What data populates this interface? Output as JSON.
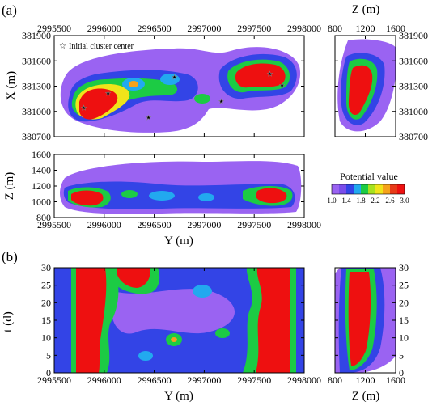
{
  "panel_labels": {
    "a": "(a)",
    "b": "(b)"
  },
  "colors": {
    "levels": [
      "#9a63f2",
      "#7a4dea",
      "#3344e6",
      "#22a9ef",
      "#1ccb44",
      "#a6e21f",
      "#f0e41a",
      "#f5a21a",
      "#e83b18",
      "#ee1010"
    ],
    "bg_white": "#ffffff"
  },
  "chart_data": [
    {
      "id": "a-xy",
      "type": "heatmap",
      "xlabel": "Y (m)",
      "ylabel": "X (m)",
      "xlim": [
        2995500,
        2998000
      ],
      "ylim": [
        380700,
        381900
      ],
      "x_ticks": [
        "2995500",
        "2996000",
        "2996500",
        "2997000",
        "2997500",
        "2998000"
      ],
      "y_ticks": [
        "381900",
        "381600",
        "381300",
        "381000",
        "380700"
      ],
      "annotation": "Initial cluster center",
      "high_regions": [
        {
          "y": 2995800,
          "x": 381150,
          "level": 3.0
        },
        {
          "y": 2996150,
          "x": 381250,
          "level": 2.6
        },
        {
          "y": 2996500,
          "x": 381320,
          "level": 2.2
        },
        {
          "y": 2997650,
          "x": 381450,
          "level": 3.0
        },
        {
          "y": 2997350,
          "x": 381450,
          "level": 2.6
        }
      ]
    },
    {
      "id": "a-xz",
      "type": "heatmap",
      "xlabel": "Z (m)",
      "ylabel": "X (m)",
      "xlim": [
        800,
        1600
      ],
      "ylim": [
        380700,
        381900
      ],
      "x_ticks": [
        "800",
        "1200",
        "1600"
      ],
      "y_ticks": [
        "381900",
        "381600",
        "381300",
        "381000",
        "380700"
      ],
      "high_regions": [
        {
          "z": 1100,
          "x": 381100,
          "level": 3.0
        },
        {
          "z": 1180,
          "x": 381450,
          "level": 3.0
        }
      ]
    },
    {
      "id": "a-yz",
      "type": "heatmap",
      "xlabel": "Y (m)",
      "ylabel": "Z (m)",
      "xlim": [
        2995500,
        2998000
      ],
      "ylim": [
        800,
        1600
      ],
      "x_ticks": [
        "2995500",
        "2996000",
        "2996500",
        "2997000",
        "2997500",
        "2998000"
      ],
      "y_ticks": [
        "1600",
        "1400",
        "1200",
        "1000",
        "800"
      ],
      "high_regions": [
        {
          "y": 2995800,
          "z": 1050,
          "level": 3.0
        },
        {
          "y": 2997650,
          "z": 1100,
          "level": 3.0
        }
      ]
    },
    {
      "id": "b-ty",
      "type": "heatmap",
      "xlabel": "Y (m)",
      "ylabel": "t (d)",
      "xlim": [
        2995500,
        2998000
      ],
      "ylim": [
        0,
        30
      ],
      "x_ticks": [
        "2995500",
        "2996000",
        "2996500",
        "2997000",
        "2997500",
        "2998000"
      ],
      "y_ticks": [
        "30",
        "25",
        "20",
        "15",
        "10",
        "5",
        "0"
      ],
      "high_regions": [
        {
          "y": 2995800,
          "t_range": [
            0,
            30
          ],
          "level": 3.0
        },
        {
          "y": 2996200,
          "t_range": [
            18,
            30
          ],
          "level": 3.0
        },
        {
          "y": 2997700,
          "t_range": [
            0,
            30
          ],
          "level": 3.0
        }
      ]
    },
    {
      "id": "b-tz",
      "type": "heatmap",
      "xlabel": "Z (m)",
      "ylabel": "",
      "xlim": [
        800,
        1600
      ],
      "ylim": [
        0,
        30
      ],
      "x_ticks": [
        "800",
        "1200",
        "1600"
      ],
      "y_ticks": [
        "30",
        "25",
        "20",
        "15",
        "10",
        "5",
        "0"
      ],
      "high_regions": [
        {
          "z": 1100,
          "t_range": [
            0,
            30
          ],
          "level": 3.0
        }
      ]
    }
  ],
  "legend": {
    "title": "Potential value",
    "tick_labels": [
      "1.0",
      "1.4",
      "1.8",
      "2.2",
      "2.6",
      "3.0"
    ],
    "min": 1.0,
    "max": 3.0
  },
  "text": {
    "a_xy_ylabel": "X (m)",
    "a_xy_top_label": "",
    "a_xz_top_label": "Z (m)",
    "a_yz_ylabel": "Z (m)",
    "a_bottom_xlabel": "Y (m)",
    "b_ylabel": "t (d)",
    "b_ty_xlabel": "Y (m)",
    "b_tz_xlabel": "Z (m)",
    "annotation": "Initial cluster center"
  }
}
